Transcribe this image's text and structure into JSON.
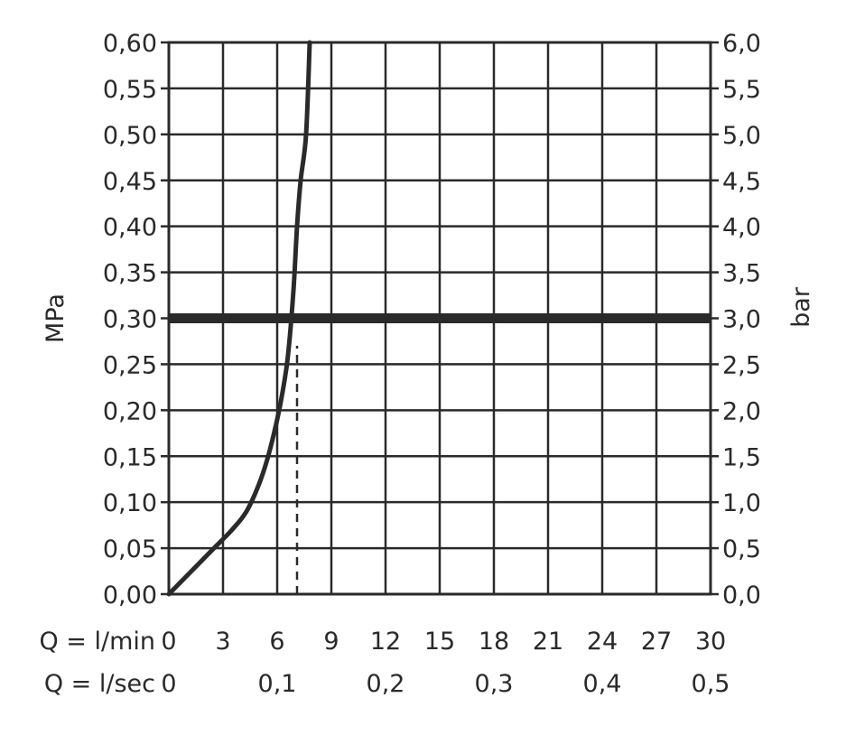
{
  "chart_data": {
    "type": "line",
    "title": "",
    "ylabel": "MPa",
    "y2label": "bar",
    "xlabel_rows": [
      {
        "label": "Q = l/min",
        "ticks": [
          0,
          3,
          6,
          9,
          12,
          15,
          18,
          21,
          24,
          27,
          30
        ],
        "tick_labels": [
          "0",
          "3",
          "6",
          "9",
          "12",
          "15",
          "18",
          "21",
          "24",
          "27",
          "30"
        ]
      },
      {
        "label": "Q = l/sec",
        "ticks": [
          0,
          0.1,
          0.2,
          0.3,
          0.4,
          0.5
        ],
        "tick_labels": [
          "0",
          "0,1",
          "0,2",
          "0,3",
          "0,4",
          "0,5"
        ]
      }
    ],
    "xlim": [
      0,
      30
    ],
    "ylim": [
      0,
      0.6
    ],
    "y2lim": [
      0,
      6.0
    ],
    "y_ticks": [
      0,
      0.05,
      0.1,
      0.15,
      0.2,
      0.25,
      0.3,
      0.35,
      0.4,
      0.45,
      0.5,
      0.55,
      0.6
    ],
    "y_tick_labels": [
      "0,00",
      "0,05",
      "0,10",
      "0,15",
      "0,20",
      "0,25",
      "0,30",
      "0,35",
      "0,40",
      "0,45",
      "0,50",
      "0,55",
      "0,60"
    ],
    "y2_tick_labels": [
      "0,0",
      "0,5",
      "1,0",
      "1,5",
      "2,0",
      "2,5",
      "3,0",
      "3,5",
      "4,0",
      "4,5",
      "5,0",
      "5,5",
      "6,0"
    ],
    "grid": true,
    "series": [
      {
        "x": [
          0,
          1.5,
          2.5,
          3.5,
          4.3,
          5.0,
          5.5,
          6.0,
          6.3,
          6.6,
          6.9,
          7.1,
          7.3,
          7.6,
          7.8
        ],
        "y": [
          0,
          0.03,
          0.05,
          0.07,
          0.09,
          0.12,
          0.15,
          0.19,
          0.22,
          0.26,
          0.33,
          0.4,
          0.45,
          0.5,
          0.6
        ]
      }
    ],
    "reference_line": {
      "y": 0.3
    },
    "drop_line": {
      "x": 7.1,
      "from_y": 0,
      "to_y": 0.27
    }
  }
}
